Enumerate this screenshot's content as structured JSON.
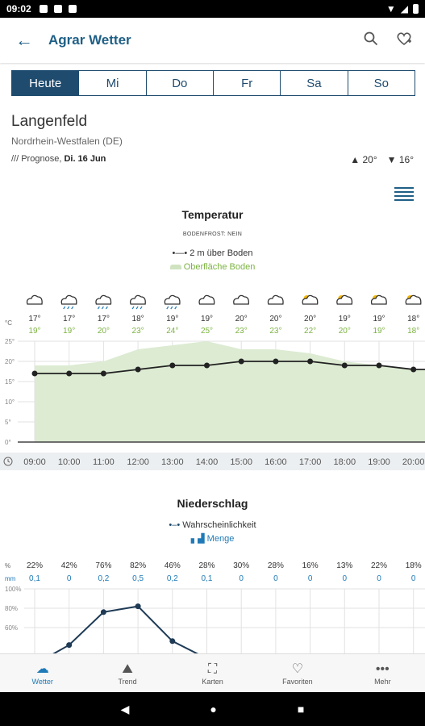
{
  "status": {
    "time": "09:02"
  },
  "appbar": {
    "title": "Agrar Wetter"
  },
  "tabs": [
    "Heute",
    "Mi",
    "Do",
    "Fr",
    "Sa",
    "So"
  ],
  "location": {
    "city": "Langenfeld",
    "region": "Nordrhein-Westfalen (DE)"
  },
  "forecast": {
    "prefix": "/// Prognose, ",
    "date": "Di. 16 Jun",
    "max": "▲ 20°",
    "min": "▼ 16°"
  },
  "temperature": {
    "title": "Temperatur",
    "frost": "BODENFROST: NEIN",
    "legend_air": "2 m über Boden",
    "legend_surface": "Oberfläche Boden"
  },
  "precipitation": {
    "title": "Niederschlag",
    "legend_prob": "Wahrscheinlichkeit",
    "legend_amount": "Menge"
  },
  "colors": {
    "primary": "#1e4b6e",
    "green": "#7cb342",
    "area": "#dcebd2",
    "blue": "#1f7ab7"
  },
  "chart_data": [
    {
      "type": "area",
      "title": "Temperatur",
      "xlabel": "",
      "ylabel": "°C",
      "x": [
        "09:00",
        "10:00",
        "11:00",
        "12:00",
        "13:00",
        "14:00",
        "15:00",
        "16:00",
        "17:00",
        "18:00",
        "19:00",
        "20:00"
      ],
      "ylim": [
        0,
        25
      ],
      "yticks": [
        "0°",
        "5°",
        "10°",
        "15°",
        "20°",
        "25°"
      ],
      "icons": [
        "cloud",
        "rain",
        "rain",
        "rain",
        "rain",
        "cloud",
        "cloud",
        "cloud",
        "partly-sunny",
        "partly-sunny",
        "partly-sunny",
        "partly-sunny"
      ],
      "series": [
        {
          "name": "2 m über Boden",
          "values": [
            17,
            17,
            17,
            18,
            19,
            19,
            20,
            20,
            20,
            19,
            19,
            18
          ]
        },
        {
          "name": "Oberfläche Boden",
          "values": [
            19,
            19,
            20,
            23,
            24,
            25,
            23,
            23,
            22,
            20,
            19,
            18
          ]
        }
      ],
      "labels_air": [
        "17°",
        "17°",
        "17°",
        "18°",
        "19°",
        "19°",
        "20°",
        "20°",
        "20°",
        "19°",
        "19°",
        "18°"
      ],
      "labels_surface": [
        "19°",
        "19°",
        "20°",
        "23°",
        "24°",
        "25°",
        "23°",
        "23°",
        "22°",
        "20°",
        "19°",
        "18°"
      ]
    },
    {
      "type": "line",
      "title": "Niederschlag",
      "ylabel": "%",
      "unit2": "mm",
      "series": [
        {
          "name": "Wahrscheinlichkeit",
          "values": [
            22,
            42,
            76,
            82,
            46,
            28,
            30,
            28,
            16,
            13,
            22,
            18
          ]
        },
        {
          "name": "Menge",
          "values": [
            0.1,
            0,
            0.2,
            0.5,
            0.2,
            0.1,
            0,
            0,
            0,
            0,
            0,
            0
          ]
        }
      ],
      "labels_prob": [
        "22%",
        "42%",
        "76%",
        "82%",
        "46%",
        "28%",
        "30%",
        "28%",
        "16%",
        "13%",
        "22%",
        "18%"
      ],
      "labels_amount": [
        "0,1",
        "0",
        "0,2",
        "0,5",
        "0,2",
        "0,1",
        "0",
        "0",
        "0",
        "0",
        "0",
        "0"
      ],
      "yticks": [
        "100%",
        "80%",
        "60%"
      ]
    }
  ],
  "nav": [
    {
      "label": "Wetter",
      "icon": "weather-icon"
    },
    {
      "label": "Trend",
      "icon": "trend-icon"
    },
    {
      "label": "Karten",
      "icon": "map-icon"
    },
    {
      "label": "Favoriten",
      "icon": "heart-icon"
    },
    {
      "label": "Mehr",
      "icon": "more-icon"
    }
  ]
}
